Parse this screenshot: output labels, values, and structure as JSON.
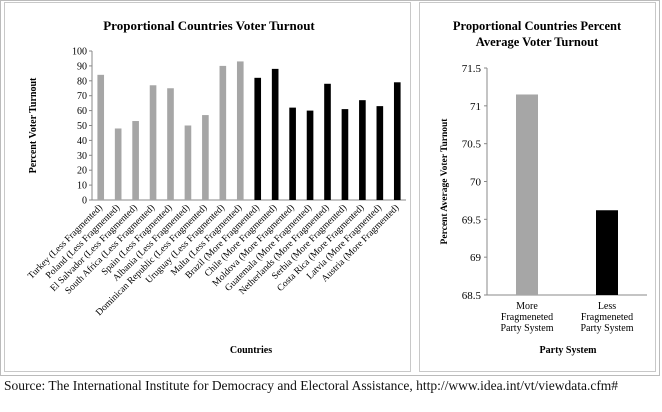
{
  "chart_data": [
    {
      "type": "bar",
      "title": "Proportional Countries Voter Turnout",
      "xlabel": "Countries",
      "ylabel": "Percent Voter Turnout",
      "ylim": [
        0,
        100
      ],
      "yticks": [
        0,
        10,
        20,
        30,
        40,
        50,
        60,
        70,
        80,
        90,
        100
      ],
      "grid": false,
      "legend": "none",
      "colors": {
        "less": "#a6a6a6",
        "more": "#000000"
      },
      "categories": [
        "Turkey (Less Fragmented)",
        "Poland (Less Fragmented)",
        "El Salvador (Less Fragmented)",
        "South Africa (Less Fragmented)",
        "Spain (Less Fragmented)",
        "Albania (Less Fragmented)",
        "Dominican Republic (Less Fragmented)",
        "Uruguay (Less Fragmented)",
        "Malta (Less Fragmented)",
        "Brazil (More Fragmented)",
        "Chile (More Fragmented)",
        "Moldova (More Fragmented)",
        "Guatemala (More Fragmented)",
        "Netherlands (More Fragmented)",
        "Serbia (More Fragmented)",
        "Costa Rica (More Fragmented)",
        "Latvia (More Fragmented)",
        "Austria (More Fragmented)"
      ],
      "values": [
        84,
        48,
        53,
        77,
        75,
        50,
        57,
        90,
        93,
        82,
        88,
        62,
        60,
        78,
        61,
        67,
        63,
        79
      ],
      "groups": [
        "less",
        "less",
        "less",
        "less",
        "less",
        "less",
        "less",
        "less",
        "less",
        "more",
        "more",
        "more",
        "more",
        "more",
        "more",
        "more",
        "more",
        "more"
      ]
    },
    {
      "type": "bar",
      "title": "Proportional Countries Percent Average Voter Turnout",
      "xlabel": "Party System",
      "ylabel": "Percent Average Voter Turnout",
      "ylim": [
        68.5,
        71.5
      ],
      "yticks": [
        "68.5",
        "69",
        "69.5",
        "70",
        "70.5",
        "71",
        "71.5"
      ],
      "grid": false,
      "legend": "none",
      "categories": [
        "More Fragmeneted Party System",
        "Less Fragmeneted Party System"
      ],
      "category_lines": [
        [
          "More",
          "Fragmeneted",
          "Party System"
        ],
        [
          "Less",
          "Fragmeneted",
          "Party System"
        ]
      ],
      "values": [
        71.15,
        69.62
      ],
      "colors": [
        "#a6a6a6",
        "#000000"
      ]
    }
  ],
  "source_text": "Source: The International Institute for Democracy and Electoral Assistance, http://www.idea.int/vt/viewdata.cfm#"
}
